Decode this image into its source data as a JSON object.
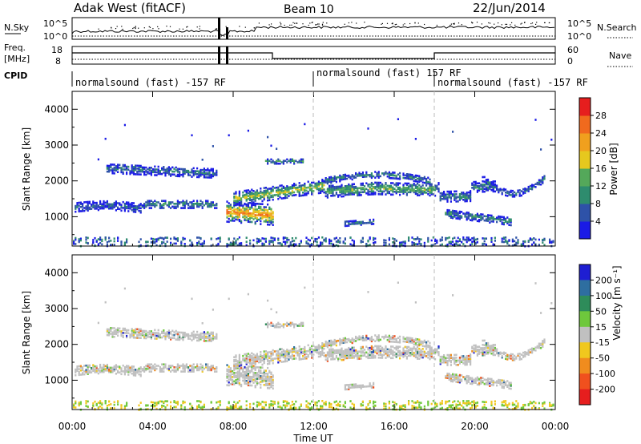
{
  "header": {
    "station": "Adak West (fitACF)",
    "beam": "Beam 10",
    "date": "22/Jun/2014"
  },
  "panels": {
    "nsky_label": "N.Sky",
    "nsky_ticks": [
      "10^5",
      "10^0"
    ],
    "nsearch_label": "N.Search",
    "nsearch_ticks": [
      "10^5",
      "10^0"
    ],
    "freq_label_1": "Freq.",
    "freq_label_2": "[MHz]",
    "freq_ticks": [
      "18",
      "8"
    ],
    "nave_label": "Nave",
    "nave_ticks": [
      "60",
      "0"
    ],
    "cpid_label": "CPID",
    "cpid_segments": [
      "normalsound (fast) -157 RF",
      "normalsound (fast) 157 RF",
      "normalsound (fast) -157 RF"
    ]
  },
  "chart_data": [
    {
      "type": "heatmap",
      "name": "power",
      "ylabel": "Slant Range [km]",
      "yticks": [
        "1000",
        "2000",
        "3000",
        "4000"
      ],
      "colorbar_label": "Power [dB]",
      "colorbar_ticks": [
        "4",
        "8",
        "12",
        "16",
        "20",
        "24",
        "28"
      ],
      "colors": [
        "#1a1ae6",
        "#2e52a8",
        "#2e8c6e",
        "#54a85a",
        "#e6c81e",
        "#f0a01e",
        "#f06a1e",
        "#e61e1e"
      ]
    },
    {
      "type": "heatmap",
      "name": "velocity",
      "ylabel": "Slant Range [km]",
      "yticks": [
        "1000",
        "2000",
        "3000",
        "4000"
      ],
      "colorbar_label": "Velocity [m s⁻¹]",
      "colorbar_ticks": [
        "200",
        "100",
        "50",
        "15",
        "-15",
        "-50",
        "-100",
        "-200"
      ],
      "colors": [
        "#1e1ed2",
        "#2e6ea0",
        "#2e8c5a",
        "#6ec83c",
        "#c0c0c0",
        "#f0c81e",
        "#f08c1e",
        "#f0501e",
        "#e61e1e"
      ]
    }
  ],
  "xaxis": {
    "ticks": [
      "00:00",
      "04:00",
      "08:00",
      "12:00",
      "16:00",
      "20:00",
      "00:00"
    ],
    "label": "Time UT"
  }
}
